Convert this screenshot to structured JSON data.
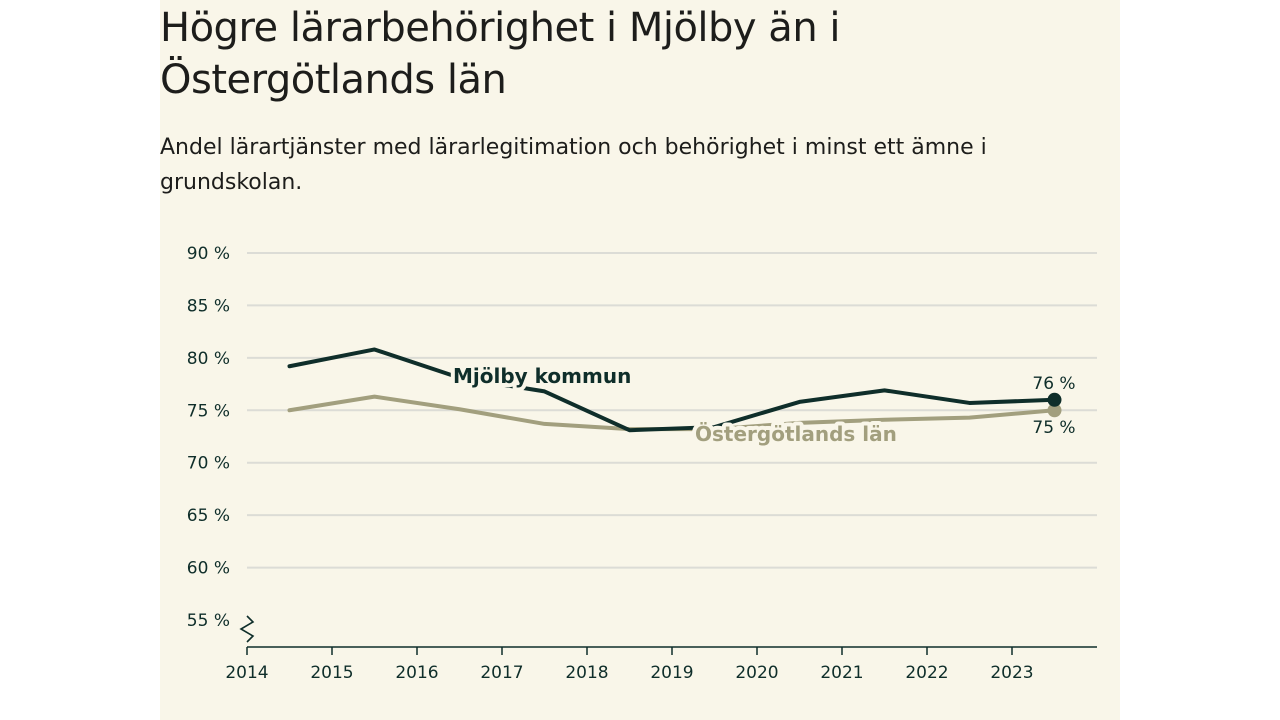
{
  "title": "Högre lärarbehörighet i Mjölby än i Östergötlands län",
  "subtitle": "Andel lärartjänster med lärarlegitimation och behörighet i minst ett ämne i grundskolan.",
  "colors": {
    "background": "#f9f6e9",
    "grid": "#dcdcd6",
    "axis": "#0f2e2a",
    "mjolby": "#0f2e2a",
    "ostergotland": "#a29f7e"
  },
  "chart_data": {
    "type": "line",
    "title": "Högre lärarbehörighet i Mjölby än i Östergötlands län",
    "subtitle": "Andel lärartjänster med lärarlegitimation och behörighet i minst ett ämne i grundskolan.",
    "xlabel": "",
    "ylabel": "",
    "x_ticks": [
      2014,
      2015,
      2016,
      2017,
      2018,
      2019,
      2020,
      2021,
      2022,
      2023
    ],
    "x_range": [
      2014,
      2024
    ],
    "y_ticks": [
      55,
      60,
      65,
      70,
      75,
      80,
      85,
      90
    ],
    "y_tick_labels": [
      "55 %",
      "60 %",
      "65 %",
      "70 %",
      "75 %",
      "80 %",
      "85 %",
      "90 %"
    ],
    "ylim": [
      55,
      90
    ],
    "grid": true,
    "axis_break": true,
    "x": [
      2014.5,
      2015.5,
      2016.5,
      2017.5,
      2018.5,
      2019.5,
      2020.5,
      2021.5,
      2022.5,
      2023.5
    ],
    "series": [
      {
        "name": "Mjölby kommun",
        "values": [
          79.2,
          80.8,
          78.1,
          76.8,
          73.1,
          73.4,
          75.8,
          76.9,
          75.7,
          76.0
        ],
        "end_label": "76 %"
      },
      {
        "name": "Östergötlands län",
        "values": [
          75.0,
          76.3,
          75.1,
          73.7,
          73.2,
          73.2,
          73.8,
          74.1,
          74.3,
          75.0
        ],
        "end_label": "75 %"
      }
    ]
  }
}
